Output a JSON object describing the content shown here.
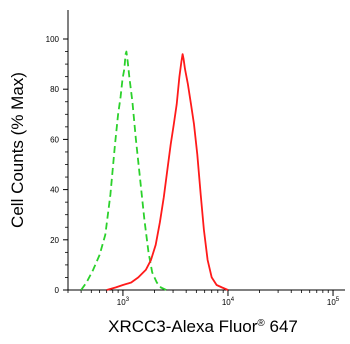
{
  "chart_data": {
    "type": "line",
    "xlabel_main": "XRCC3-Alexa Fluor",
    "xlabel_super": "®",
    "xlabel_tail": " 647",
    "ylabel": "Cell Counts (% Max)",
    "x_scale": "log",
    "xlim": [
      300,
      130000
    ],
    "ylim": [
      0,
      100
    ],
    "y_ticks": [
      0,
      20,
      40,
      60,
      80,
      100
    ],
    "x_ticks": [
      {
        "value": 1000,
        "base": "10",
        "exp": "3"
      },
      {
        "value": 10000,
        "base": "10",
        "exp": "4"
      },
      {
        "value": 100000,
        "base": "10",
        "exp": "5"
      }
    ],
    "series": [
      {
        "color": "#2bd12b",
        "dash": "dashed",
        "points": [
          [
            400,
            0
          ],
          [
            450,
            3
          ],
          [
            520,
            8
          ],
          [
            600,
            14
          ],
          [
            680,
            22
          ],
          [
            760,
            38
          ],
          [
            840,
            58
          ],
          [
            900,
            70
          ],
          [
            950,
            77
          ],
          [
            990,
            84
          ],
          [
            1030,
            88
          ],
          [
            1060,
            94
          ],
          [
            1080,
            95
          ],
          [
            1110,
            91
          ],
          [
            1150,
            85
          ],
          [
            1230,
            75
          ],
          [
            1330,
            60
          ],
          [
            1450,
            45
          ],
          [
            1600,
            28
          ],
          [
            1750,
            15
          ],
          [
            1900,
            7
          ],
          [
            2100,
            3
          ],
          [
            2300,
            1
          ],
          [
            2600,
            0
          ]
        ]
      },
      {
        "color": "#ff1a1a",
        "dash": "solid",
        "points": [
          [
            700,
            0
          ],
          [
            850,
            1
          ],
          [
            1000,
            2
          ],
          [
            1200,
            3
          ],
          [
            1400,
            5
          ],
          [
            1650,
            8
          ],
          [
            1850,
            12
          ],
          [
            2050,
            18
          ],
          [
            2250,
            27
          ],
          [
            2450,
            37
          ],
          [
            2650,
            48
          ],
          [
            2850,
            58
          ],
          [
            3050,
            66
          ],
          [
            3250,
            74
          ],
          [
            3450,
            85
          ],
          [
            3600,
            91
          ],
          [
            3700,
            94
          ],
          [
            3780,
            92
          ],
          [
            3900,
            88
          ],
          [
            4150,
            82
          ],
          [
            4450,
            74
          ],
          [
            4750,
            66
          ],
          [
            5100,
            54
          ],
          [
            5500,
            38
          ],
          [
            5900,
            24
          ],
          [
            6400,
            12
          ],
          [
            7000,
            5
          ],
          [
            7800,
            2
          ],
          [
            8800,
            1
          ],
          [
            10000,
            0
          ]
        ]
      }
    ]
  }
}
